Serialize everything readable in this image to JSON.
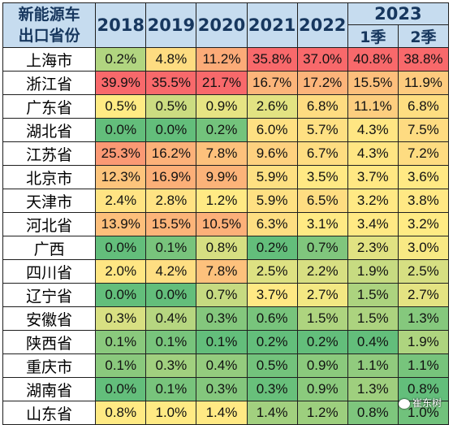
{
  "chart_data": {
    "type": "table",
    "corner_label_line1": "新能源车",
    "corner_label_line2": "出口省份",
    "years": [
      "2018",
      "2019",
      "2020",
      "2021",
      "2022"
    ],
    "year_2023": "2023",
    "quarters": [
      "1季",
      "2季"
    ],
    "columns": [
      "2018",
      "2019",
      "2020",
      "2021",
      "2022",
      "2023 1季",
      "2023 2季"
    ],
    "rows": [
      {
        "province": "上海市",
        "values": [
          "0.2%",
          "4.8%",
          "11.2%",
          "35.8%",
          "37.0%",
          "40.8%",
          "38.8%"
        ]
      },
      {
        "province": "浙江省",
        "values": [
          "39.9%",
          "35.5%",
          "21.7%",
          "16.7%",
          "17.2%",
          "15.5%",
          "11.9%"
        ]
      },
      {
        "province": "广东省",
        "values": [
          "0.5%",
          "0.5%",
          "0.9%",
          "2.6%",
          "6.8%",
          "11.1%",
          "6.8%"
        ]
      },
      {
        "province": "湖北省",
        "values": [
          "0.0%",
          "0.0%",
          "0.2%",
          "6.0%",
          "5.7%",
          "4.3%",
          "7.5%"
        ]
      },
      {
        "province": "江苏省",
        "values": [
          "25.3%",
          "16.2%",
          "7.8%",
          "9.6%",
          "6.7%",
          "4.3%",
          "7.2%"
        ]
      },
      {
        "province": "北京市",
        "values": [
          "12.3%",
          "16.9%",
          "9.9%",
          "5.9%",
          "3.5%",
          "3.7%",
          "3.6%"
        ]
      },
      {
        "province": "天津市",
        "values": [
          "2.4%",
          "2.8%",
          "1.2%",
          "5.9%",
          "6.5%",
          "3.2%",
          "3.8%"
        ]
      },
      {
        "province": "河北省",
        "values": [
          "13.9%",
          "15.5%",
          "10.5%",
          "6.3%",
          "3.1%",
          "3.4%",
          "3.2%"
        ]
      },
      {
        "province": "广西",
        "values": [
          "0.0%",
          "0.1%",
          "0.8%",
          "0.2%",
          "0.7%",
          "2.3%",
          "3.0%"
        ]
      },
      {
        "province": "四川省",
        "values": [
          "2.0%",
          "4.2%",
          "7.8%",
          "2.5%",
          "2.2%",
          "1.9%",
          "2.5%"
        ]
      },
      {
        "province": "辽宁省",
        "values": [
          "0.0%",
          "0.0%",
          "0.7%",
          "3.7%",
          "2.7%",
          "1.5%",
          "2.7%"
        ]
      },
      {
        "province": "安徽省",
        "values": [
          "0.3%",
          "0.4%",
          "0.3%",
          "0.6%",
          "1.5%",
          "1.5%",
          "1.3%"
        ]
      },
      {
        "province": "陕西省",
        "values": [
          "0.1%",
          "0.1%",
          "0.1%",
          "0.2%",
          "0.2%",
          "0.4%",
          "1.9%"
        ]
      },
      {
        "province": "重庆市",
        "values": [
          "0.1%",
          "0.3%",
          "0.4%",
          "0.5%",
          "0.9%",
          "1.1%",
          "1.1%"
        ]
      },
      {
        "province": "湖南省",
        "values": [
          "0.0%",
          "0.1%",
          "0.3%",
          "0.3%",
          "0.9%",
          "1.3%",
          "0.8%"
        ]
      },
      {
        "province": "山东省",
        "values": [
          "0.8%",
          "1.0%",
          "1.4%",
          "1.4%",
          "1.2%",
          "0.8%",
          "1.0%"
        ]
      }
    ],
    "color_scale": {
      "low": "#63be7b",
      "mid": "#ffeb84",
      "high": "#f8696b"
    },
    "header_color": "#c6dcef"
  },
  "watermark": "崔东树"
}
